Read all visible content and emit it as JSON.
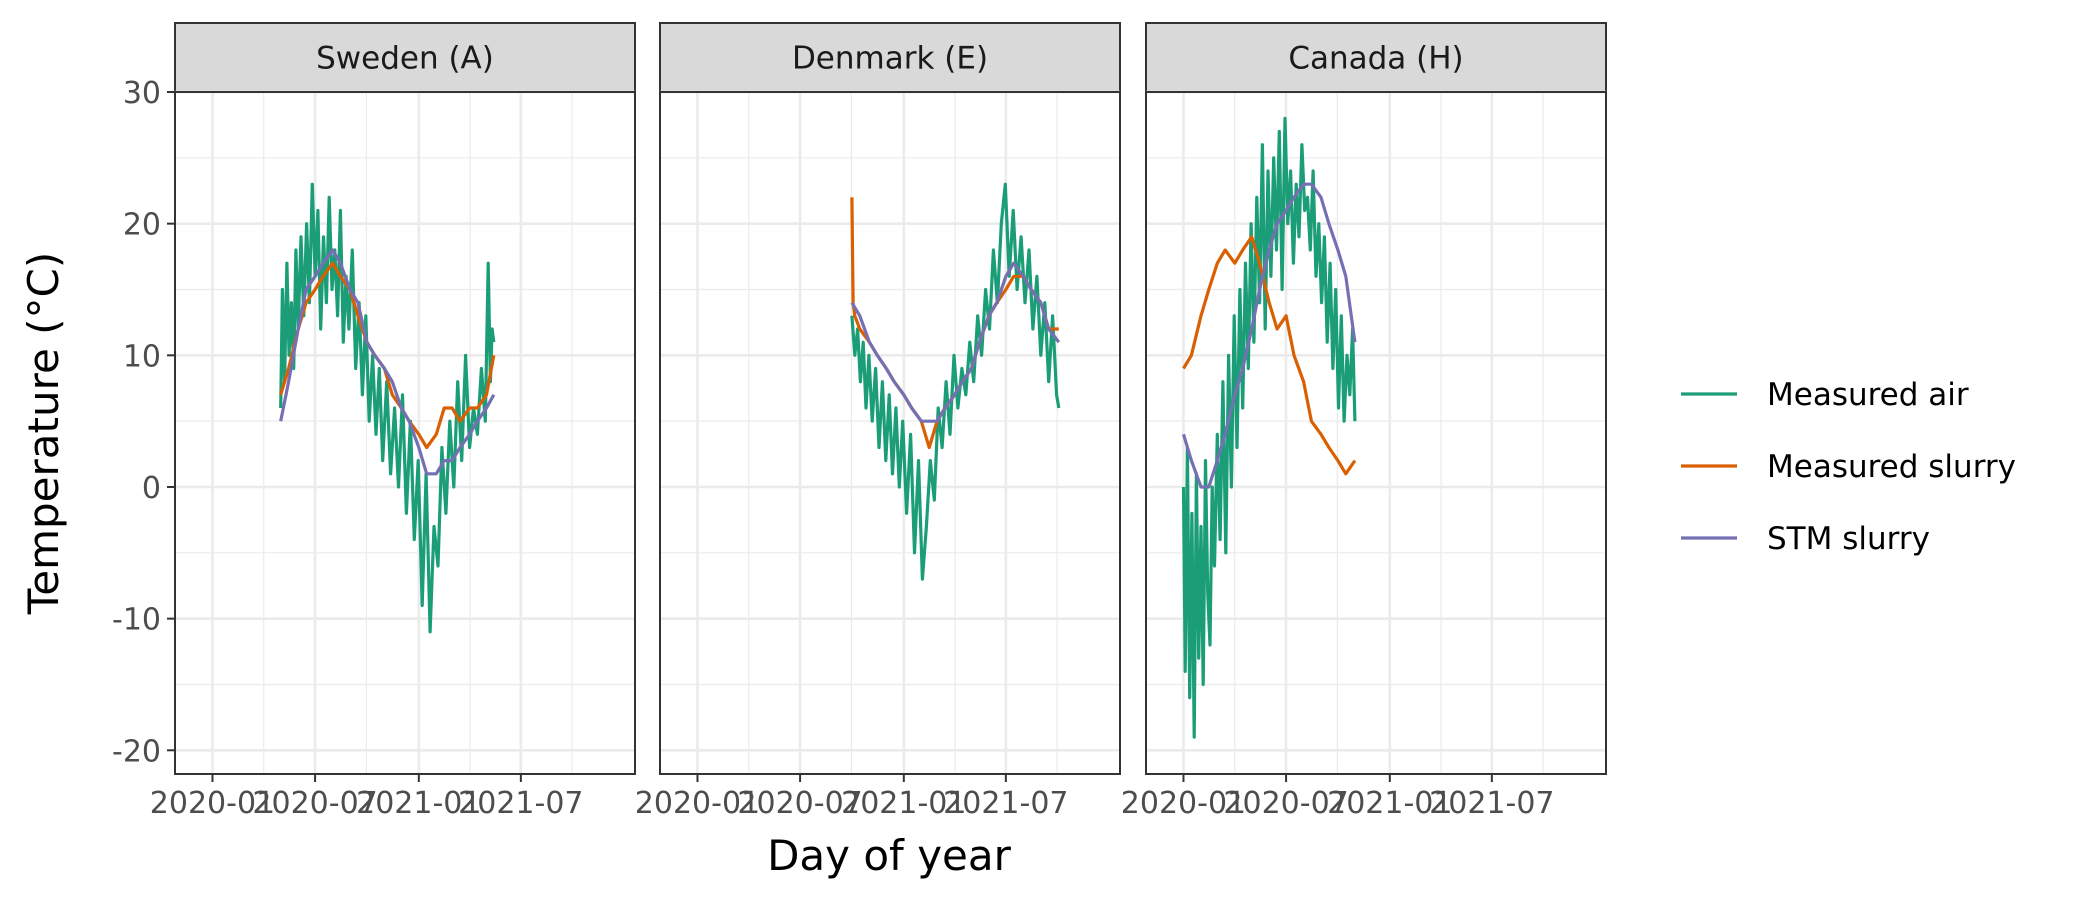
{
  "chart_data": {
    "type": "line",
    "xlabel": "Day of year",
    "ylabel": "Temperature (°C)",
    "ylim": [
      -21.8,
      30
    ],
    "xlim": [
      "2019-12-01",
      "2021-12-15"
    ],
    "y_ticks": [
      -20,
      -10,
      0,
      10,
      20,
      30
    ],
    "y_tick_labels": [
      "-20",
      "-10",
      "0",
      "10",
      "20",
      "30"
    ],
    "x_ticks": [
      "2020-01-01",
      "2020-07-01",
      "2021-01-01",
      "2021-07-01"
    ],
    "x_tick_labels": [
      "2020-01",
      "2020-07",
      "2021-01",
      "2021-07"
    ],
    "grid": true,
    "legend_position": "right",
    "series_styles": [
      {
        "name": "Measured air",
        "color": "#1b9e77"
      },
      {
        "name": "Measured slurry",
        "color": "#d95f02"
      },
      {
        "name": "STM slurry",
        "color": "#7570b3"
      }
    ],
    "panels": [
      {
        "title": "Sweden (A)",
        "series": [
          {
            "name": "Measured air",
            "x": [
              "2020-05-01",
              "2020-05-04",
              "2020-05-08",
              "2020-05-12",
              "2020-05-16",
              "2020-05-20",
              "2020-05-24",
              "2020-05-28",
              "2020-06-01",
              "2020-06-06",
              "2020-06-11",
              "2020-06-16",
              "2020-06-21",
              "2020-06-26",
              "2020-07-01",
              "2020-07-06",
              "2020-07-11",
              "2020-07-16",
              "2020-07-21",
              "2020-07-26",
              "2020-07-31",
              "2020-08-05",
              "2020-08-10",
              "2020-08-15",
              "2020-08-20",
              "2020-08-25",
              "2020-08-30",
              "2020-09-05",
              "2020-09-11",
              "2020-09-17",
              "2020-09-23",
              "2020-09-29",
              "2020-10-05",
              "2020-10-11",
              "2020-10-17",
              "2020-10-23",
              "2020-10-29",
              "2020-11-05",
              "2020-11-12",
              "2020-11-19",
              "2020-11-26",
              "2020-12-03",
              "2020-12-10",
              "2020-12-17",
              "2020-12-24",
              "2020-12-31",
              "2021-01-07",
              "2021-01-14",
              "2021-01-21",
              "2021-01-28",
              "2021-02-04",
              "2021-02-11",
              "2021-02-18",
              "2021-02-25",
              "2021-03-04",
              "2021-03-11",
              "2021-03-18",
              "2021-03-25",
              "2021-04-01",
              "2021-04-08",
              "2021-04-15",
              "2021-04-22",
              "2021-04-29",
              "2021-05-04",
              "2021-05-08",
              "2021-05-11",
              "2021-05-14"
            ],
            "y": [
              6,
              15,
              8,
              17,
              10,
              14,
              9,
              18,
              12,
              19,
              13,
              20,
              14,
              23,
              16,
              21,
              12,
              19,
              14,
              22,
              15,
              18,
              13,
              21,
              11,
              16,
              12,
              18,
              9,
              14,
              7,
              13,
              5,
              10,
              4,
              9,
              2,
              8,
              1,
              6,
              0,
              7,
              -2,
              5,
              -4,
              2,
              -9,
              1,
              -11,
              -3,
              -6,
              3,
              -2,
              5,
              0,
              8,
              2,
              10,
              3,
              6,
              4,
              9,
              5,
              17,
              8,
              12,
              11
            ],
            "color": "#1b9e77"
          },
          {
            "name": "Measured slurry",
            "x": [
              "2020-05-01",
              "2020-05-15",
              "2020-06-01",
              "2020-06-15",
              "2020-07-01",
              "2020-07-15",
              "2020-08-01",
              "2020-08-15",
              "2020-09-01",
              "2020-09-15",
              "2020-10-01",
              "2020-10-15",
              "2020-11-01",
              "2020-11-15",
              "2020-12-01",
              "2020-12-15",
              "2021-01-01",
              "2021-01-15",
              "2021-02-01",
              "2021-02-15",
              "2021-03-01",
              "2021-03-15",
              "2021-04-01",
              "2021-04-15",
              "2021-05-01",
              "2021-05-14"
            ],
            "y": [
              7,
              9,
              12,
              14,
              15,
              16,
              17,
              16,
              15,
              13,
              11,
              10,
              9,
              7,
              6,
              5,
              4,
              3,
              4,
              6,
              6,
              5,
              6,
              6,
              7,
              10
            ],
            "color": "#d95f02"
          },
          {
            "name": "STM slurry",
            "x": [
              "2020-05-01",
              "2020-05-15",
              "2020-06-01",
              "2020-06-15",
              "2020-07-01",
              "2020-07-15",
              "2020-08-01",
              "2020-08-15",
              "2020-09-01",
              "2020-09-15",
              "2020-10-01",
              "2020-10-15",
              "2020-11-01",
              "2020-11-15",
              "2020-12-01",
              "2020-12-15",
              "2021-01-01",
              "2021-01-15",
              "2021-02-01",
              "2021-02-15",
              "2021-03-01",
              "2021-03-15",
              "2021-04-01",
              "2021-04-15",
              "2021-05-01",
              "2021-05-14"
            ],
            "y": [
              5,
              8,
              12,
              15,
              16,
              17,
              18,
              17,
              15,
              14,
              11,
              10,
              9,
              8,
              6,
              5,
              3,
              1,
              1,
              2,
              2,
              3,
              4,
              5,
              6,
              7
            ],
            "color": "#7570b3"
          }
        ]
      },
      {
        "title": "Denmark (E)",
        "series": [
          {
            "name": "Measured air",
            "x": [
              "2020-10-01",
              "2020-10-06",
              "2020-10-11",
              "2020-10-16",
              "2020-10-21",
              "2020-10-26",
              "2020-10-31",
              "2020-11-06",
              "2020-11-12",
              "2020-11-18",
              "2020-11-24",
              "2020-11-30",
              "2020-12-06",
              "2020-12-12",
              "2020-12-18",
              "2020-12-24",
              "2020-12-30",
              "2021-01-06",
              "2021-01-13",
              "2021-01-20",
              "2021-01-27",
              "2021-02-03",
              "2021-02-10",
              "2021-02-17",
              "2021-02-24",
              "2021-03-03",
              "2021-03-10",
              "2021-03-17",
              "2021-03-24",
              "2021-03-31",
              "2021-04-07",
              "2021-04-14",
              "2021-04-21",
              "2021-04-28",
              "2021-05-05",
              "2021-05-12",
              "2021-05-19",
              "2021-05-26",
              "2021-06-02",
              "2021-06-09",
              "2021-06-16",
              "2021-06-23",
              "2021-06-30",
              "2021-07-07",
              "2021-07-14",
              "2021-07-21",
              "2021-07-28",
              "2021-08-04",
              "2021-08-11",
              "2021-08-18",
              "2021-08-25",
              "2021-09-01",
              "2021-09-08",
              "2021-09-15",
              "2021-09-22",
              "2021-09-29",
              "2021-10-03"
            ],
            "y": [
              13,
              10,
              12,
              8,
              11,
              6,
              10,
              5,
              9,
              3,
              8,
              2,
              7,
              1,
              6,
              0,
              5,
              -2,
              4,
              -5,
              2,
              -7,
              -3,
              2,
              -1,
              6,
              3,
              8,
              4,
              10,
              6,
              9,
              7,
              11,
              8,
              13,
              10,
              15,
              12,
              18,
              14,
              20,
              23,
              16,
              21,
              15,
              19,
              14,
              18,
              12,
              16,
              10,
              14,
              8,
              13,
              7,
              6
            ],
            "color": "#1b9e77"
          },
          {
            "name": "Measured slurry",
            "x": [
              "2020-10-01",
              "2020-10-03",
              "2020-10-06",
              "2020-10-15",
              "2020-11-01",
              "2020-11-15",
              "2020-12-01",
              "2020-12-15",
              "2021-01-01",
              "2021-01-15",
              "2021-02-01",
              "2021-02-15",
              "2021-03-01",
              "2021-03-15",
              "2021-04-01",
              "2021-04-15",
              "2021-05-01",
              "2021-05-15",
              "2021-06-01",
              "2021-06-15",
              "2021-07-01",
              "2021-07-15",
              "2021-08-01",
              "2021-08-15",
              "2021-09-01",
              "2021-09-15",
              "2021-10-03"
            ],
            "y": [
              22,
              14,
              13,
              12,
              11,
              10,
              9,
              8,
              7,
              6,
              5,
              3,
              5,
              6,
              7,
              8,
              9,
              11,
              13,
              14,
              15,
              16,
              16,
              15,
              14,
              12,
              12
            ],
            "color": "#d95f02"
          },
          {
            "name": "STM slurry",
            "x": [
              "2020-10-01",
              "2020-10-15",
              "2020-11-01",
              "2020-11-15",
              "2020-12-01",
              "2020-12-15",
              "2021-01-01",
              "2021-01-15",
              "2021-02-01",
              "2021-02-15",
              "2021-03-01",
              "2021-03-15",
              "2021-04-01",
              "2021-04-15",
              "2021-05-01",
              "2021-05-15",
              "2021-06-01",
              "2021-06-15",
              "2021-07-01",
              "2021-07-15",
              "2021-08-01",
              "2021-08-15",
              "2021-09-01",
              "2021-09-15",
              "2021-10-03"
            ],
            "y": [
              14,
              13,
              11,
              10,
              9,
              8,
              7,
              6,
              5,
              5,
              5,
              6,
              7,
              8,
              9,
              11,
              13,
              14,
              16,
              17,
              16,
              15,
              14,
              12,
              11
            ],
            "color": "#7570b3"
          }
        ]
      },
      {
        "title": "Canada (H)",
        "series": [
          {
            "name": "Measured air",
            "x": [
              "2020-01-01",
              "2020-01-04",
              "2020-01-08",
              "2020-01-12",
              "2020-01-16",
              "2020-01-20",
              "2020-01-24",
              "2020-01-28",
              "2020-02-01",
              "2020-02-05",
              "2020-02-09",
              "2020-02-13",
              "2020-02-17",
              "2020-02-21",
              "2020-02-25",
              "2020-03-01",
              "2020-03-06",
              "2020-03-11",
              "2020-03-16",
              "2020-03-21",
              "2020-03-26",
              "2020-03-31",
              "2020-04-05",
              "2020-04-10",
              "2020-04-15",
              "2020-04-20",
              "2020-04-25",
              "2020-04-30",
              "2020-05-05",
              "2020-05-10",
              "2020-05-15",
              "2020-05-20",
              "2020-05-25",
              "2020-05-30",
              "2020-06-04",
              "2020-06-09",
              "2020-06-14",
              "2020-06-19",
              "2020-06-24",
              "2020-06-29",
              "2020-07-04",
              "2020-07-09",
              "2020-07-14",
              "2020-07-19",
              "2020-07-24",
              "2020-07-29",
              "2020-08-03",
              "2020-08-08",
              "2020-08-13",
              "2020-08-18",
              "2020-08-23",
              "2020-08-28",
              "2020-09-02",
              "2020-09-07",
              "2020-09-12",
              "2020-09-17",
              "2020-09-22",
              "2020-09-27",
              "2020-10-02",
              "2020-10-07",
              "2020-10-12",
              "2020-10-17",
              "2020-10-22",
              "2020-10-27",
              "2020-10-31"
            ],
            "y": [
              0,
              -14,
              3,
              -16,
              -2,
              -19,
              1,
              -13,
              -3,
              -15,
              2,
              -8,
              -12,
              0,
              -6,
              4,
              -4,
              8,
              -5,
              10,
              0,
              13,
              3,
              15,
              6,
              17,
              9,
              20,
              11,
              22,
              14,
              26,
              12,
              24,
              16,
              25,
              18,
              27,
              15,
              28,
              20,
              24,
              17,
              23,
              19,
              26,
              21,
              22,
              18,
              24,
              16,
              20,
              14,
              19,
              11,
              17,
              9,
              15,
              6,
              13,
              5,
              10,
              7,
              12,
              5
            ],
            "color": "#1b9e77"
          },
          {
            "name": "Measured slurry",
            "x": [
              "2020-01-01",
              "2020-01-15",
              "2020-02-01",
              "2020-02-15",
              "2020-03-01",
              "2020-03-15",
              "2020-04-01",
              "2020-04-15",
              "2020-05-01",
              "2020-05-15",
              "2020-06-01",
              "2020-06-15",
              "2020-07-01",
              "2020-07-15",
              "2020-08-01",
              "2020-08-15",
              "2020-09-01",
              "2020-09-15",
              "2020-10-01",
              "2020-10-15",
              "2020-10-31"
            ],
            "y": [
              9,
              10,
              13,
              15,
              17,
              18,
              17,
              18,
              19,
              17,
              14,
              12,
              13,
              10,
              8,
              5,
              4,
              3,
              2,
              1,
              2
            ],
            "color": "#d95f02"
          },
          {
            "name": "STM slurry",
            "x": [
              "2020-01-01",
              "2020-01-15",
              "2020-02-01",
              "2020-02-15",
              "2020-03-01",
              "2020-03-15",
              "2020-04-01",
              "2020-04-15",
              "2020-05-01",
              "2020-05-15",
              "2020-06-01",
              "2020-06-15",
              "2020-07-01",
              "2020-07-15",
              "2020-08-01",
              "2020-08-15",
              "2020-09-01",
              "2020-09-15",
              "2020-10-01",
              "2020-10-15",
              "2020-10-31"
            ],
            "y": [
              4,
              2,
              0,
              0,
              2,
              4,
              7,
              9,
              12,
              15,
              18,
              20,
              21,
              22,
              23,
              23,
              22,
              20,
              18,
              16,
              11
            ],
            "color": "#7570b3"
          }
        ]
      }
    ]
  }
}
